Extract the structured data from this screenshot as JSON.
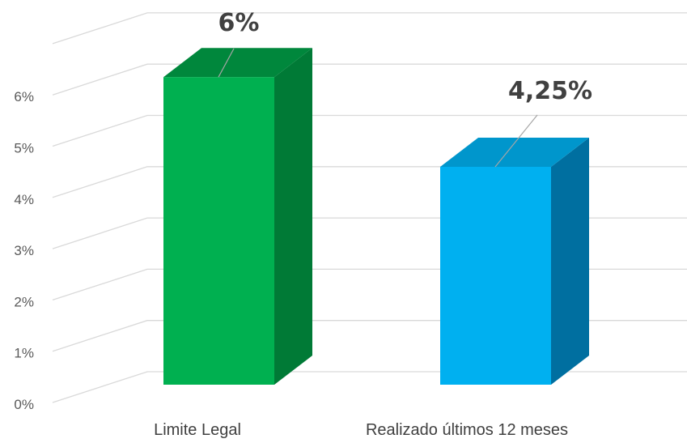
{
  "chart_data": {
    "type": "bar",
    "style": "3d-column",
    "categories": [
      "Limite Legal",
      "Realizado últimos 12 meses"
    ],
    "values": [
      6,
      4.25
    ],
    "data_labels": [
      "6%",
      "4,25%"
    ],
    "yticks": [
      "0%",
      "1%",
      "2%",
      "3%",
      "4%",
      "5%",
      "6%"
    ],
    "ylim": [
      0,
      7
    ],
    "grid": true,
    "legend": false,
    "colors": {
      "bar_fronts": [
        "#00b050",
        "#00b0f0"
      ],
      "bar_tops": [
        "#00873c",
        "#0096cc"
      ],
      "bar_sides": [
        "#007a36",
        "#006fa0"
      ],
      "grid": "#d9d9d9",
      "text": "#595959"
    }
  }
}
